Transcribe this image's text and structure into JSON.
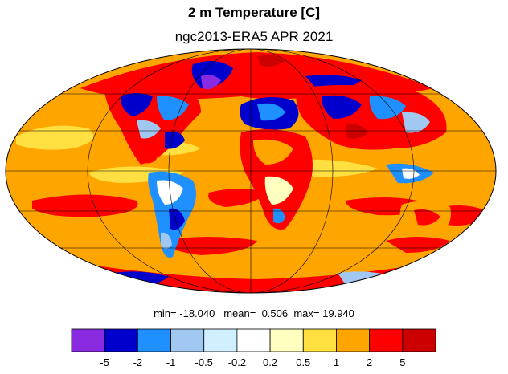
{
  "title": "2 m Temperature [C]",
  "subtitle": "ngc2013-ERA5 APR 2021",
  "stats": {
    "min_label": "min=",
    "min": "-18.040",
    "mean_label": "mean=",
    "mean": "0.506",
    "max_label": "max=",
    "max": "19.940"
  },
  "colorbar": {
    "colors": [
      "#8a2be2",
      "#0000cd",
      "#1e90ff",
      "#a0c8f0",
      "#d0f0ff",
      "#ffffff",
      "#ffffc0",
      "#ffe040",
      "#ffa500",
      "#ff0000",
      "#cd0000"
    ],
    "tick_labels": [
      "-5",
      "-2",
      "-1",
      "-0.5",
      "-0.2",
      "0.2",
      "0.5",
      "1",
      "2",
      "5"
    ]
  },
  "map": {
    "projection": "mollweide",
    "ocean_color": "#ffa500",
    "graticule": true
  }
}
